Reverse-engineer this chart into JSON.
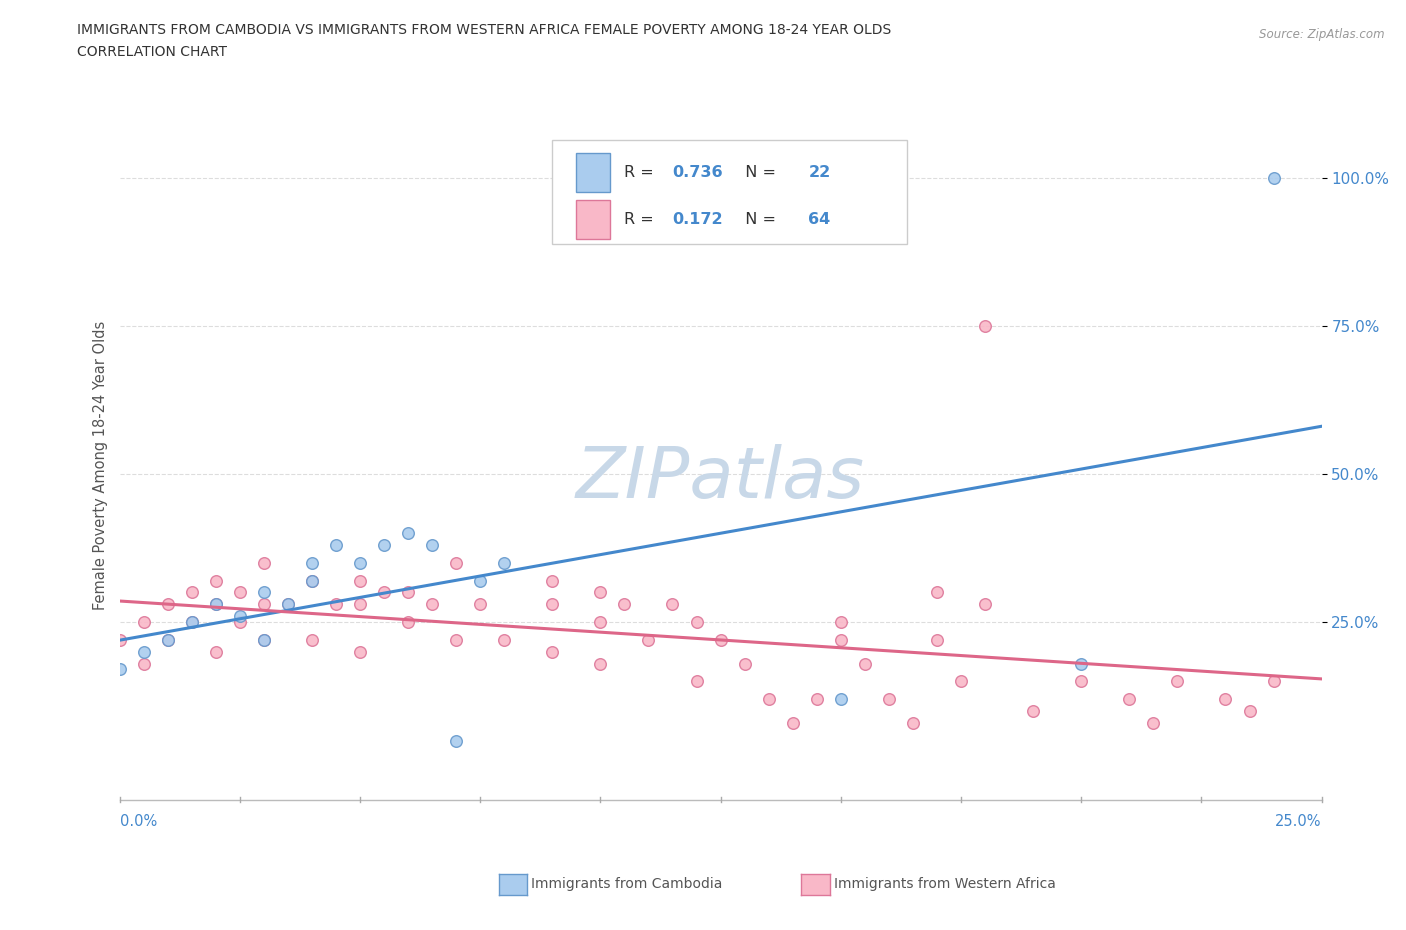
{
  "title_line1": "IMMIGRANTS FROM CAMBODIA VS IMMIGRANTS FROM WESTERN AFRICA FEMALE POVERTY AMONG 18-24 YEAR OLDS",
  "title_line2": "CORRELATION CHART",
  "source_text": "Source: ZipAtlas.com",
  "ylabel": "Female Poverty Among 18-24 Year Olds",
  "ytick_labels": [
    "25.0%",
    "50.0%",
    "75.0%",
    "100.0%"
  ],
  "ytick_values": [
    0.25,
    0.5,
    0.75,
    1.0
  ],
  "r_cam": 0.736,
  "n_cam": 22,
  "r_waf": 0.172,
  "n_waf": 64,
  "watermark_text": "ZIPatlas",
  "watermark_color": "#c8d8e8",
  "cambodia_fill": "#aaccee",
  "cambodia_edge": "#6699cc",
  "western_africa_fill": "#f9b8c8",
  "western_africa_edge": "#dd7799",
  "cambodia_line_color": "#4488cc",
  "western_africa_line_color": "#dd6688",
  "grid_color": "#dddddd",
  "background_color": "#ffffff",
  "xmin": 0.0,
  "xmax": 0.25,
  "ymin": -0.05,
  "ymax": 1.08,
  "legend_box_color": "#eeeeee",
  "legend_text_color": "#333333",
  "legend_value_color": "#4488cc",
  "cambodia_scatter_x": [
    0.0,
    0.005,
    0.01,
    0.015,
    0.02,
    0.025,
    0.03,
    0.035,
    0.04,
    0.045,
    0.05,
    0.055,
    0.06,
    0.065,
    0.07,
    0.075,
    0.08,
    0.03,
    0.04,
    0.15,
    0.2,
    0.24
  ],
  "cambodia_scatter_y": [
    0.17,
    0.2,
    0.22,
    0.25,
    0.28,
    0.26,
    0.3,
    0.28,
    0.32,
    0.38,
    0.35,
    0.38,
    0.4,
    0.38,
    0.05,
    0.32,
    0.35,
    0.22,
    0.35,
    0.12,
    0.18,
    1.0
  ],
  "western_africa_scatter_x": [
    0.0,
    0.005,
    0.005,
    0.01,
    0.01,
    0.015,
    0.015,
    0.02,
    0.02,
    0.02,
    0.025,
    0.025,
    0.03,
    0.03,
    0.03,
    0.035,
    0.04,
    0.04,
    0.045,
    0.05,
    0.05,
    0.05,
    0.055,
    0.06,
    0.06,
    0.065,
    0.07,
    0.07,
    0.075,
    0.08,
    0.09,
    0.09,
    0.1,
    0.1,
    0.105,
    0.11,
    0.115,
    0.12,
    0.125,
    0.13,
    0.135,
    0.14,
    0.145,
    0.15,
    0.155,
    0.16,
    0.165,
    0.17,
    0.175,
    0.18,
    0.19,
    0.2,
    0.21,
    0.215,
    0.22,
    0.23,
    0.235,
    0.24,
    0.17,
    0.18,
    0.09,
    0.1,
    0.12,
    0.15
  ],
  "western_africa_scatter_y": [
    0.22,
    0.18,
    0.25,
    0.22,
    0.28,
    0.25,
    0.3,
    0.2,
    0.28,
    0.32,
    0.25,
    0.3,
    0.22,
    0.28,
    0.35,
    0.28,
    0.22,
    0.32,
    0.28,
    0.2,
    0.28,
    0.32,
    0.3,
    0.25,
    0.3,
    0.28,
    0.22,
    0.35,
    0.28,
    0.22,
    0.28,
    0.32,
    0.25,
    0.3,
    0.28,
    0.22,
    0.28,
    0.15,
    0.22,
    0.18,
    0.12,
    0.08,
    0.12,
    0.22,
    0.18,
    0.12,
    0.08,
    0.22,
    0.15,
    0.75,
    0.1,
    0.15,
    0.12,
    0.08,
    0.15,
    0.12,
    0.1,
    0.15,
    0.3,
    0.28,
    0.2,
    0.18,
    0.25,
    0.25
  ]
}
